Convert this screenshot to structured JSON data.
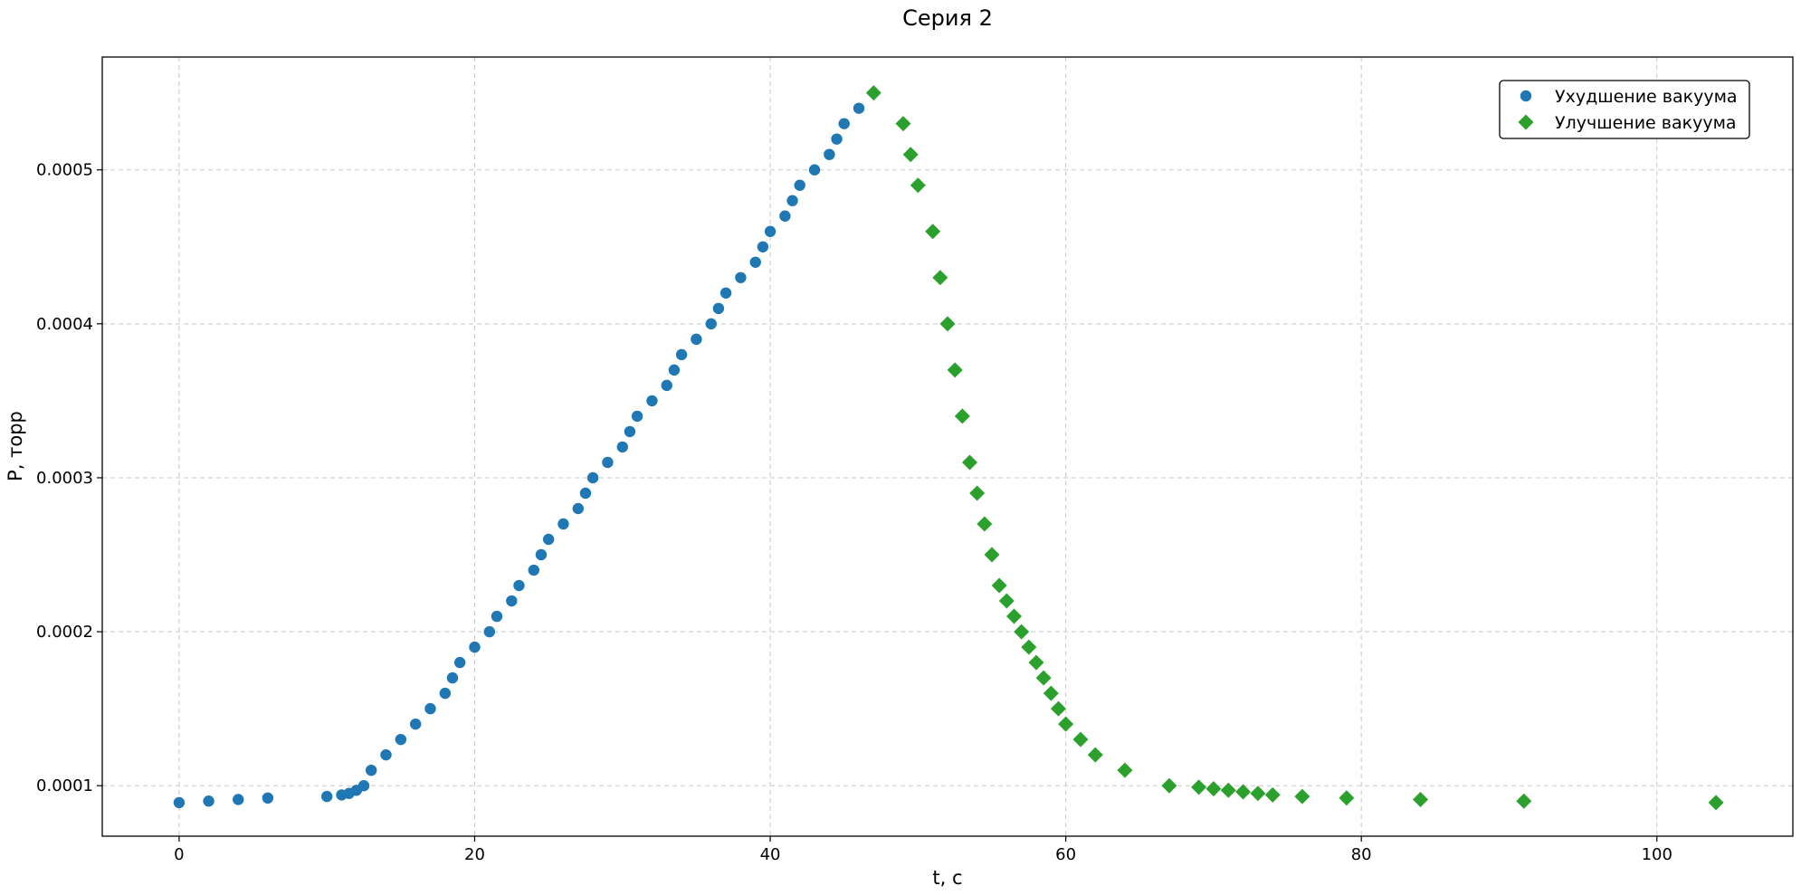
{
  "chart_data": {
    "type": "scatter",
    "title": "Серия 2",
    "xlabel": "t, с",
    "ylabel": "P, торр",
    "xlim": [
      -5.2,
      109.2
    ],
    "ylim": [
      6.72e-05,
      0.0005733
    ],
    "xticks": [
      0,
      20,
      40,
      60,
      80,
      100
    ],
    "xtick_labels": [
      "0",
      "20",
      "40",
      "60",
      "80",
      "100"
    ],
    "yticks": [
      0.0001,
      0.0002,
      0.0003,
      0.0004,
      0.0005
    ],
    "ytick_labels": [
      "0.0001",
      "0.0002",
      "0.0003",
      "0.0004",
      "0.0005"
    ],
    "grid": true,
    "legend_position": "top-right",
    "series": [
      {
        "name": "Ухудшение вакуума",
        "marker": "circle",
        "color": "#1f77b4",
        "points": [
          [
            0,
            8.9e-05
          ],
          [
            2,
            9e-05
          ],
          [
            4,
            9.1e-05
          ],
          [
            6,
            9.2e-05
          ],
          [
            10,
            9.3e-05
          ],
          [
            11,
            9.4e-05
          ],
          [
            11.5,
            9.5e-05
          ],
          [
            12,
            9.7e-05
          ],
          [
            12.5,
            0.0001
          ],
          [
            13,
            0.00011
          ],
          [
            14,
            0.00012
          ],
          [
            15,
            0.00013
          ],
          [
            16,
            0.00014
          ],
          [
            17,
            0.00015
          ],
          [
            18,
            0.00016
          ],
          [
            18.5,
            0.00017
          ],
          [
            19,
            0.00018
          ],
          [
            20,
            0.00019
          ],
          [
            21,
            0.0002
          ],
          [
            21.5,
            0.00021
          ],
          [
            22.5,
            0.00022
          ],
          [
            23,
            0.00023
          ],
          [
            24,
            0.00024
          ],
          [
            24.5,
            0.00025
          ],
          [
            25,
            0.00026
          ],
          [
            26,
            0.00027
          ],
          [
            27,
            0.00028
          ],
          [
            27.5,
            0.00029
          ],
          [
            28,
            0.0003
          ],
          [
            29,
            0.00031
          ],
          [
            30,
            0.00032
          ],
          [
            30.5,
            0.00033
          ],
          [
            31,
            0.00034
          ],
          [
            32,
            0.00035
          ],
          [
            33,
            0.00036
          ],
          [
            33.5,
            0.00037
          ],
          [
            34,
            0.00038
          ],
          [
            35,
            0.00039
          ],
          [
            36,
            0.0004
          ],
          [
            36.5,
            0.00041
          ],
          [
            37,
            0.00042
          ],
          [
            38,
            0.00043
          ],
          [
            39,
            0.00044
          ],
          [
            39.5,
            0.00045
          ],
          [
            40,
            0.00046
          ],
          [
            41,
            0.00047
          ],
          [
            41.5,
            0.00048
          ],
          [
            42,
            0.00049
          ],
          [
            43,
            0.0005
          ],
          [
            44,
            0.00051
          ],
          [
            44.5,
            0.00052
          ],
          [
            45,
            0.00053
          ],
          [
            46,
            0.00054
          ]
        ]
      },
      {
        "name": "Улучшение вакуума",
        "marker": "diamond",
        "color": "#2ca02c",
        "points": [
          [
            47,
            0.00055
          ],
          [
            49,
            0.00053
          ],
          [
            49.5,
            0.00051
          ],
          [
            50,
            0.00049
          ],
          [
            51,
            0.00046
          ],
          [
            51.5,
            0.00043
          ],
          [
            52,
            0.0004
          ],
          [
            52.5,
            0.00037
          ],
          [
            53,
            0.00034
          ],
          [
            53.5,
            0.00031
          ],
          [
            54,
            0.00029
          ],
          [
            54.5,
            0.00027
          ],
          [
            55,
            0.00025
          ],
          [
            55.5,
            0.00023
          ],
          [
            56,
            0.00022
          ],
          [
            56.5,
            0.00021
          ],
          [
            57,
            0.0002
          ],
          [
            57.5,
            0.00019
          ],
          [
            58,
            0.00018
          ],
          [
            58.5,
            0.00017
          ],
          [
            59,
            0.00016
          ],
          [
            59.5,
            0.00015
          ],
          [
            60,
            0.00014
          ],
          [
            61,
            0.00013
          ],
          [
            62,
            0.00012
          ],
          [
            64,
            0.00011
          ],
          [
            67,
            0.0001
          ],
          [
            69,
            9.9e-05
          ],
          [
            70,
            9.8e-05
          ],
          [
            71,
            9.7e-05
          ],
          [
            72,
            9.6e-05
          ],
          [
            73,
            9.5e-05
          ],
          [
            74,
            9.4e-05
          ],
          [
            76,
            9.3e-05
          ],
          [
            79,
            9.2e-05
          ],
          [
            84,
            9.1e-05
          ],
          [
            91,
            9e-05
          ],
          [
            104,
            8.9e-05
          ]
        ]
      }
    ]
  }
}
